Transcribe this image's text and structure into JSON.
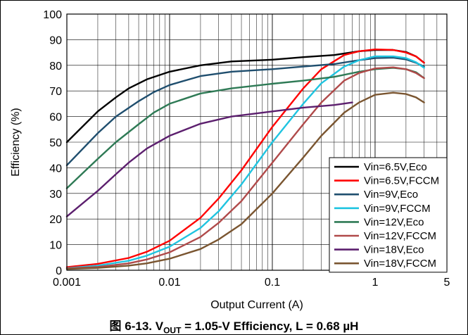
{
  "caption": {
    "prefix": "图 6-13. V",
    "sub": "OUT",
    "rest": " = 1.05-V Efficiency, L = 0.68 µH"
  },
  "chart_data": {
    "type": "line",
    "xlabel": "Output Current (A)",
    "ylabel": "Efficiency (%)",
    "xscale": "log",
    "xlim": [
      0.001,
      5
    ],
    "ylim": [
      0,
      100
    ],
    "xticks": [
      {
        "value": 0.001,
        "label": "0.001"
      },
      {
        "value": 0.01,
        "label": "0.01"
      },
      {
        "value": 0.1,
        "label": "0.1"
      },
      {
        "value": 1,
        "label": "1"
      },
      {
        "value": 5,
        "label": "5"
      }
    ],
    "yticks": [
      0,
      10,
      20,
      30,
      40,
      50,
      60,
      70,
      80,
      90,
      100
    ],
    "grid": true,
    "legend_position": "bottom-right",
    "series": [
      {
        "name": "Vin=6.5V,Eco",
        "color": "#000000",
        "x": [
          0.001,
          0.002,
          0.003,
          0.004,
          0.006,
          0.01,
          0.02,
          0.04,
          0.1,
          0.2,
          0.4,
          0.7,
          1.0,
          1.5,
          2.0,
          2.5,
          3.0
        ],
        "y": [
          50,
          62,
          67.5,
          71,
          74.5,
          77.5,
          80,
          81.5,
          82.2,
          83.2,
          84,
          85.5,
          86,
          86,
          85.2,
          83.5,
          81
        ]
      },
      {
        "name": "Vin=6.5V,FCCM",
        "color": "#ff0000",
        "x": [
          0.001,
          0.002,
          0.004,
          0.006,
          0.01,
          0.02,
          0.03,
          0.05,
          0.1,
          0.2,
          0.3,
          0.5,
          0.7,
          1.0,
          1.5,
          2.0,
          2.5,
          3.0
        ],
        "y": [
          1.2,
          2.5,
          4.8,
          7.2,
          11.5,
          20.5,
          28,
          39,
          56,
          71,
          78.5,
          84,
          85.5,
          86.2,
          86,
          85,
          83.5,
          81
        ]
      },
      {
        "name": "Vin=9V,Eco",
        "color": "#1f4e6e",
        "x": [
          0.001,
          0.002,
          0.003,
          0.005,
          0.007,
          0.01,
          0.02,
          0.04,
          0.1,
          0.2,
          0.4,
          0.7,
          1.0,
          1.5,
          2.0,
          2.5,
          3.0
        ],
        "y": [
          41,
          53.5,
          60,
          66,
          69.5,
          72.3,
          75.8,
          77.5,
          78.5,
          79.5,
          80.5,
          82,
          82.8,
          83,
          82.3,
          81,
          79.5
        ]
      },
      {
        "name": "Vin=9V,FCCM",
        "color": "#1fc4e0",
        "x": [
          0.001,
          0.002,
          0.004,
          0.006,
          0.01,
          0.02,
          0.03,
          0.05,
          0.1,
          0.2,
          0.3,
          0.5,
          0.7,
          1.0,
          1.5,
          2.0,
          2.5,
          3.0
        ],
        "y": [
          0.8,
          1.8,
          3.7,
          5.7,
          9.2,
          16.5,
          23,
          33.5,
          50,
          65,
          73,
          79.5,
          82,
          83.5,
          83.5,
          82.8,
          81.2,
          79
        ]
      },
      {
        "name": "Vin=12V,Eco",
        "color": "#2e7a55",
        "x": [
          0.001,
          0.002,
          0.003,
          0.005,
          0.007,
          0.01,
          0.02,
          0.04,
          0.1,
          0.2,
          0.4,
          0.7,
          1.0,
          1.5,
          2.0,
          2.5,
          3.0
        ],
        "y": [
          32,
          43.5,
          50,
          57,
          61.5,
          65,
          69,
          71,
          72.8,
          74,
          75.5,
          77.5,
          78.5,
          79,
          78.5,
          77.3,
          75
        ]
      },
      {
        "name": "Vin=12V,FCCM",
        "color": "#b04a4a",
        "x": [
          0.001,
          0.002,
          0.004,
          0.006,
          0.01,
          0.02,
          0.03,
          0.05,
          0.1,
          0.2,
          0.3,
          0.5,
          0.7,
          1.0,
          1.5,
          2.0,
          2.5,
          3.0
        ],
        "y": [
          0.7,
          1.3,
          2.7,
          4.2,
          7,
          13,
          18.5,
          27,
          42,
          57,
          65.5,
          74,
          77,
          78.8,
          79.2,
          78.5,
          77,
          75
        ]
      },
      {
        "name": "Vin=18V,Eco",
        "color": "#5c1f6e",
        "x": [
          0.001,
          0.002,
          0.003,
          0.004,
          0.006,
          0.01,
          0.02,
          0.04,
          0.1,
          0.2,
          0.4,
          0.6
        ],
        "y": [
          21,
          31,
          37.5,
          42,
          47.5,
          52.5,
          57.2,
          60,
          62,
          63.5,
          64.5,
          65.5
        ]
      },
      {
        "name": "Vin=18V,FCCM",
        "color": "#7a5530",
        "x": [
          0.001,
          0.002,
          0.004,
          0.006,
          0.01,
          0.02,
          0.03,
          0.05,
          0.1,
          0.2,
          0.3,
          0.5,
          0.7,
          1.0,
          1.5,
          2.0,
          2.5,
          3.0
        ],
        "y": [
          0.5,
          0.9,
          1.8,
          2.7,
          4.5,
          8.3,
          12,
          18,
          30,
          44,
          52.5,
          61.5,
          65.5,
          68.5,
          69.3,
          68.8,
          67.5,
          65.5
        ]
      }
    ]
  }
}
